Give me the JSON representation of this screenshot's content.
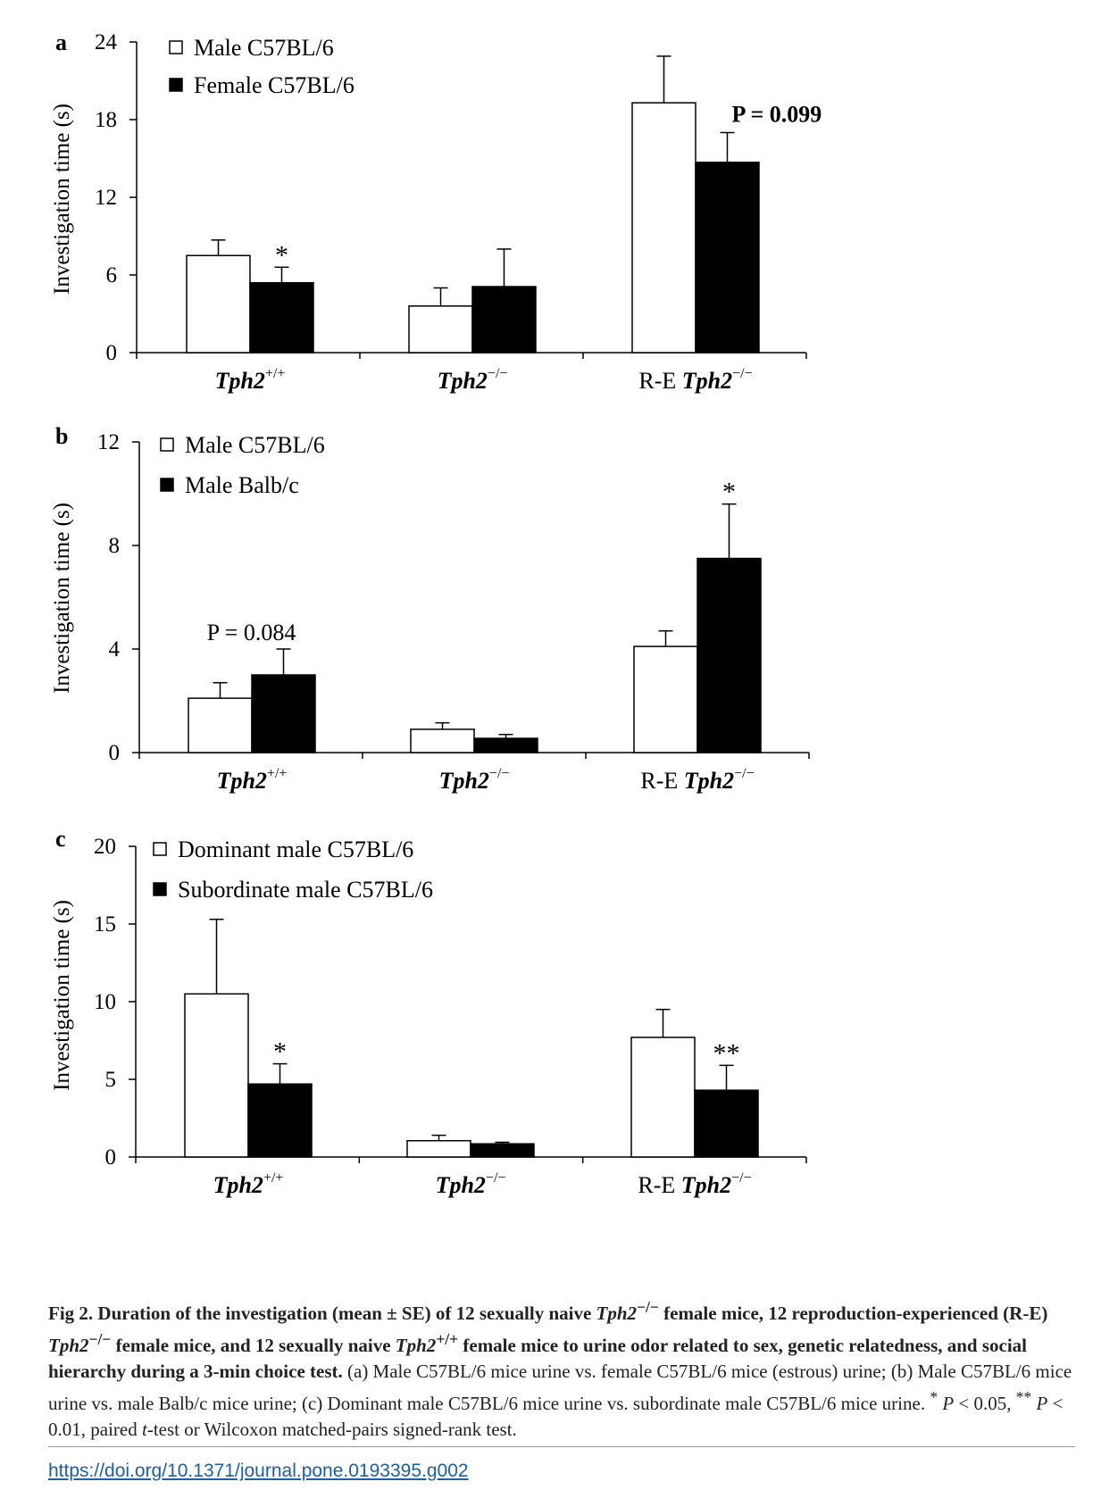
{
  "chart_data": [
    {
      "type": "bar",
      "panel": "a",
      "ylabel": "Investigation time (s)",
      "ylim": [
        0,
        24
      ],
      "yticks": [
        "0",
        "6",
        "12",
        "18",
        "24"
      ],
      "categories": [
        {
          "name": "Tph2",
          "sup": "+/+",
          "prefix": ""
        },
        {
          "name": "Tph2",
          "sup": "−/−",
          "prefix": ""
        },
        {
          "name": "Tph2",
          "sup": "−/−",
          "prefix": "R-E "
        }
      ],
      "series": [
        {
          "name": "Male C57BL/6",
          "fill": "#ffffff",
          "values": [
            7.5,
            3.6,
            19.3
          ],
          "errors": [
            1.2,
            1.4,
            3.6
          ]
        },
        {
          "name": "Female C57BL/6",
          "fill": "#000000",
          "values": [
            5.4,
            5.1,
            14.7
          ],
          "errors": [
            1.2,
            2.9,
            2.3
          ]
        }
      ],
      "annotations": [
        {
          "text": "*",
          "category": 0,
          "series": 1
        },
        {
          "text": "P = 0.099",
          "category": 2,
          "series": 1,
          "italic_prefix": "P",
          "bold": true
        }
      ]
    },
    {
      "type": "bar",
      "panel": "b",
      "ylabel": "Investigation time (s)",
      "ylim": [
        0,
        12
      ],
      "yticks": [
        "0",
        "4",
        "8",
        "12"
      ],
      "categories": [
        {
          "name": "Tph2",
          "sup": "+/+",
          "prefix": ""
        },
        {
          "name": "Tph2",
          "sup": "−/−",
          "prefix": ""
        },
        {
          "name": "Tph2",
          "sup": "−/−",
          "prefix": "R-E "
        }
      ],
      "series": [
        {
          "name": "Male C57BL/6",
          "fill": "#ffffff",
          "values": [
            2.1,
            0.9,
            4.1
          ],
          "errors": [
            0.6,
            0.25,
            0.6
          ]
        },
        {
          "name": "Male Balb/c",
          "fill": "#000000",
          "values": [
            3.0,
            0.55,
            7.5
          ],
          "errors": [
            1.0,
            0.15,
            2.1
          ]
        }
      ],
      "annotations": [
        {
          "text": "P = 0.084",
          "category": 0,
          "series": 1,
          "italic_prefix": "P",
          "bold": false
        },
        {
          "text": "*",
          "category": 2,
          "series": 1
        }
      ]
    },
    {
      "type": "bar",
      "panel": "c",
      "ylabel": "Investigation time (s)",
      "ylim": [
        0,
        20
      ],
      "yticks": [
        "0",
        "5",
        "10",
        "15",
        "20"
      ],
      "categories": [
        {
          "name": "Tph2",
          "sup": "+/+",
          "prefix": ""
        },
        {
          "name": "Tph2",
          "sup": "−/−",
          "prefix": ""
        },
        {
          "name": "Tph2",
          "sup": "−/−",
          "prefix": "R-E "
        }
      ],
      "series": [
        {
          "name": "Dominant male C57BL/6",
          "fill": "#ffffff",
          "values": [
            10.5,
            1.05,
            7.7
          ],
          "errors": [
            4.8,
            0.35,
            1.8
          ]
        },
        {
          "name": "Subordinate male C57BL/6",
          "fill": "#000000",
          "values": [
            4.7,
            0.85,
            4.3
          ],
          "errors": [
            1.3,
            0.1,
            1.6
          ]
        }
      ],
      "annotations": [
        {
          "text": "*",
          "category": 0,
          "series": 1
        },
        {
          "text": "**",
          "category": 2,
          "series": 1
        }
      ]
    }
  ],
  "caption": {
    "lead": "Fig 2.",
    "bold_1": " Duration of the investigation (mean ± SE) of 12 sexually naive ",
    "gene": "Tph2",
    "sup_ko": "−/−",
    "bold_2": " female mice, 12 reproduction-experienced (R-E) ",
    "bold_3": " female mice, and 12 sexually naive ",
    "sup_wt": "+/+",
    "bold_4": " female mice to urine odor related to sex, genetic relatedness, and social hierarchy during a 3-min choice test.",
    "plain_1": " (a) Male C57BL/6 mice urine vs. female C57BL/6 mice (estrous) urine; (b) Male C57BL/6 mice urine vs. male Balb/c mice urine; (c) Dominant male C57BL/6 mice urine vs. subordinate male C57BL/6 mice urine. ",
    "star_1": "*",
    "p_1": " P",
    "plain_2": " < 0.05, ",
    "star_2": "**",
    "p_2": " P",
    "plain_3": " < 0.01, paired ",
    "t_letter": "t",
    "plain_4": "-test or Wilcoxon matched-pairs signed-rank test."
  },
  "doi": "https://doi.org/10.1371/journal.pone.0193395.g002"
}
